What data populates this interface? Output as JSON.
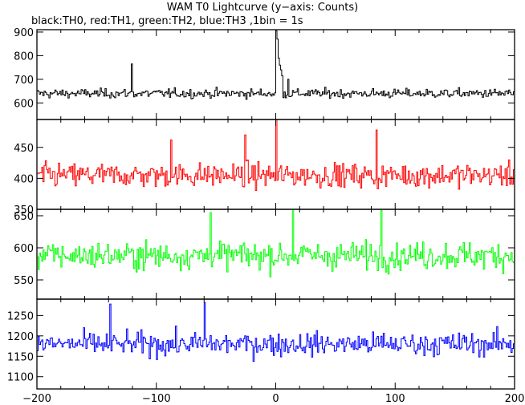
{
  "chart_data": {
    "type": "line",
    "title": "WAM T0 Lightcurve (y−axis: Counts)",
    "subtitle": "black:TH0, red:TH1, green:TH2, blue:TH3 ,1bin = 1s",
    "xlabel": "",
    "ylabel": "",
    "x_range": [
      -200,
      200
    ],
    "x_ticks": [
      -200,
      -100,
      0,
      100,
      200
    ],
    "x_tick_labels": [
      "−200",
      "−100",
      "0",
      "100",
      "200"
    ],
    "bin_width": 1,
    "grid": false,
    "panels": [
      {
        "color": "#000000",
        "ylim": [
          530,
          910
        ],
        "y_ticks": [
          600,
          700,
          800,
          900
        ],
        "baseline": 640,
        "noise": 22,
        "spikes": [
          {
            "x": 0,
            "y": 905
          },
          {
            "x": 1,
            "y": 870
          },
          {
            "x": 2,
            "y": 790
          },
          {
            "x": 3,
            "y": 760
          },
          {
            "x": 4,
            "y": 740
          },
          {
            "x": 5,
            "y": 715
          },
          {
            "x": -121,
            "y": 765
          },
          {
            "x": 10,
            "y": 700
          }
        ]
      },
      {
        "color": "#ff0000",
        "ylim": [
          350,
          495
        ],
        "y_ticks": [
          350,
          400,
          450
        ],
        "baseline": 405,
        "noise": 22,
        "spikes": [
          {
            "x": 0,
            "y": 495
          },
          {
            "x": 84,
            "y": 478
          },
          {
            "x": -26,
            "y": 470
          },
          {
            "x": -88,
            "y": 462
          }
        ]
      },
      {
        "color": "#00ff00",
        "ylim": [
          520,
          660
        ],
        "y_ticks": [
          550,
          600,
          650
        ],
        "baseline": 588,
        "noise": 24,
        "spikes": [
          {
            "x": 14,
            "y": 660
          },
          {
            "x": 88,
            "y": 658
          },
          {
            "x": -55,
            "y": 655
          }
        ]
      },
      {
        "color": "#0000ff",
        "ylim": [
          1070,
          1290
        ],
        "y_ticks": [
          1100,
          1150,
          1200,
          1250
        ],
        "baseline": 1180,
        "noise": 32,
        "spikes": [
          {
            "x": -60,
            "y": 1282
          },
          {
            "x": -139,
            "y": 1278
          }
        ]
      }
    ]
  }
}
